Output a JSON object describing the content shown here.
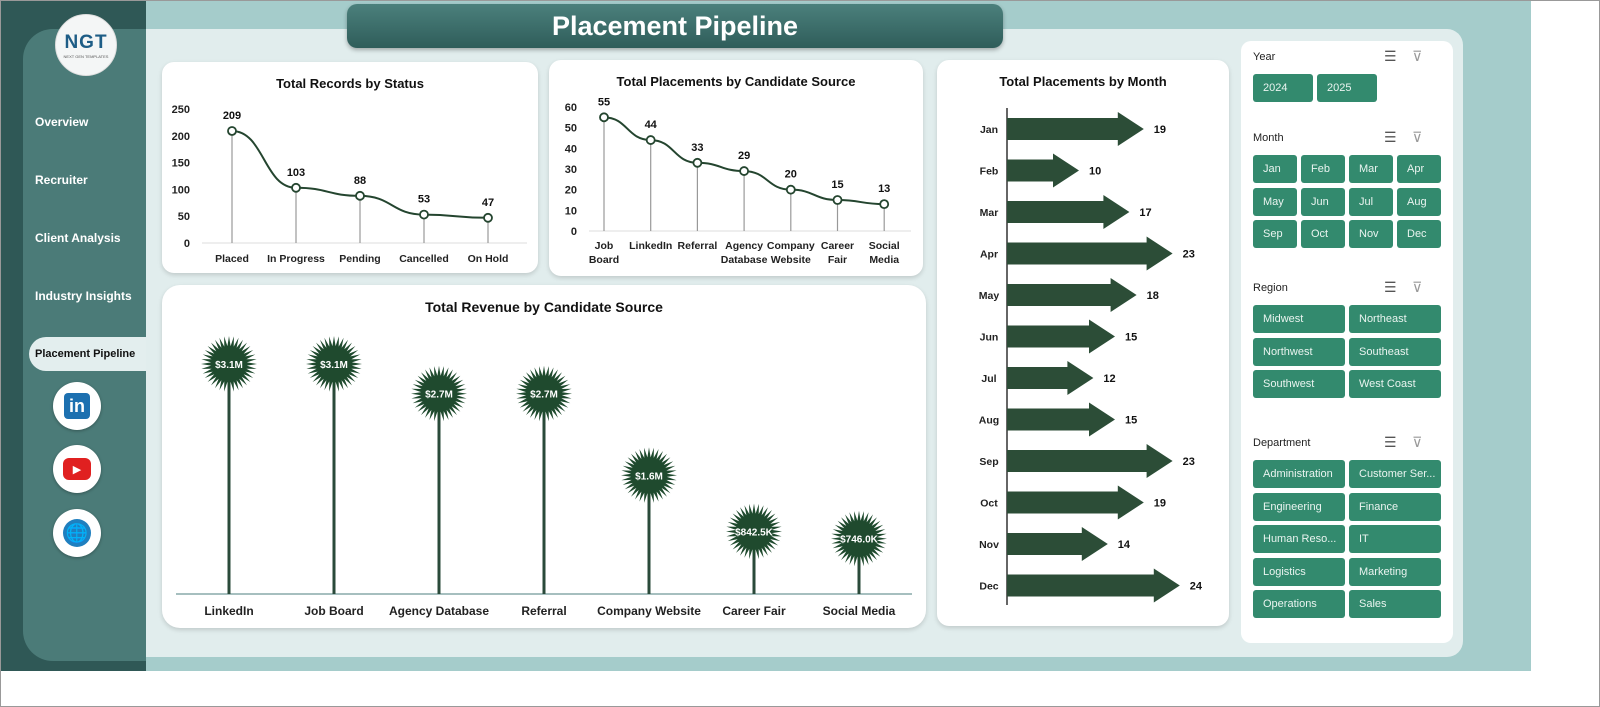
{
  "header": {
    "title": "Placement Pipeline"
  },
  "logo": {
    "text": "NGT",
    "subtext": "NEXT GEN TEMPLATES"
  },
  "sidebar": {
    "items": [
      {
        "label": "Overview"
      },
      {
        "label": "Recruiter"
      },
      {
        "label": "Client Analysis"
      },
      {
        "label": "Industry Insights"
      },
      {
        "label": "Placement Pipeline",
        "active": true
      }
    ],
    "social": [
      {
        "icon": "linkedin-icon",
        "label": "in"
      },
      {
        "icon": "youtube-icon"
      },
      {
        "icon": "globe-icon"
      }
    ]
  },
  "colors": {
    "accent": "#2f5856",
    "series": "#24452f",
    "slicer": "#338a6e"
  },
  "chart_data": [
    {
      "type": "line",
      "title": "Total Records by Status",
      "categories": [
        "Placed",
        "In Progress",
        "Pending",
        "Cancelled",
        "On Hold"
      ],
      "values": [
        209,
        103,
        88,
        53,
        47
      ],
      "ylim": [
        0,
        250
      ],
      "yticks": [
        0,
        50,
        100,
        150,
        200,
        250
      ]
    },
    {
      "type": "line",
      "title": "Total Placements by Candidate Source",
      "categories": [
        "Job Board",
        "LinkedIn",
        "Referral",
        "Agency Database",
        "Company Website",
        "Career Fair",
        "Social Media"
      ],
      "values": [
        55,
        44,
        33,
        29,
        20,
        15,
        13
      ],
      "ylim": [
        0,
        60
      ],
      "yticks": [
        0,
        10,
        20,
        30,
        40,
        50,
        60
      ]
    },
    {
      "type": "bar",
      "title": "Total Revenue  by Candidate Source",
      "categories": [
        "LinkedIn",
        "Job Board",
        "Agency Database",
        "Referral",
        "Company Website",
        "Career Fair",
        "Social Media"
      ],
      "values": [
        3100000,
        3100000,
        2700000,
        2700000,
        1600000,
        842500,
        746000
      ],
      "labels": [
        "$3.1M",
        "$3.1M",
        "$2.7M",
        "$2.7M",
        "$1.6M",
        "$842.5K",
        "$746.0K"
      ]
    },
    {
      "type": "bar",
      "orientation": "horizontal",
      "title": "Total Placements  by Month",
      "categories": [
        "Jan",
        "Feb",
        "Mar",
        "Apr",
        "May",
        "Jun",
        "Jul",
        "Aug",
        "Sep",
        "Oct",
        "Nov",
        "Dec"
      ],
      "values": [
        19,
        10,
        17,
        23,
        18,
        15,
        12,
        15,
        23,
        19,
        14,
        24
      ]
    }
  ],
  "slicers": [
    {
      "title": "Year",
      "items": [
        "2024",
        "2025"
      ],
      "cols": 2,
      "w": 60
    },
    {
      "title": "Month",
      "items": [
        "Jan",
        "Feb",
        "Mar",
        "Apr",
        "May",
        "Jun",
        "Jul",
        "Aug",
        "Sep",
        "Oct",
        "Nov",
        "Dec"
      ],
      "cols": 4,
      "w": 44
    },
    {
      "title": "Region",
      "items": [
        "Midwest",
        "Northeast",
        "Northwest",
        "Southeast",
        "Southwest",
        "West Coast"
      ],
      "cols": 2,
      "w": 92
    },
    {
      "title": "Department",
      "items": [
        "Administration",
        "Customer Ser...",
        "Engineering",
        "Finance",
        "Human Reso...",
        "IT",
        "Logistics",
        "Marketing",
        "Operations",
        "Sales"
      ],
      "cols": 2,
      "w": 92
    }
  ]
}
